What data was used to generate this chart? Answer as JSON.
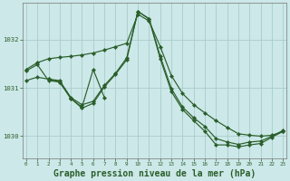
{
  "title": "Graphe pression niveau de la mer (hPa)",
  "hours": [
    0,
    1,
    2,
    3,
    4,
    5,
    6,
    7,
    8,
    9,
    10,
    11,
    12,
    13,
    14,
    15,
    16,
    17,
    18,
    19,
    20,
    21,
    22,
    23
  ],
  "line_smooth": {
    "x": [
      0,
      1,
      2,
      3,
      4,
      5,
      6,
      7,
      8,
      9,
      10,
      11,
      12,
      13,
      14,
      15,
      16,
      17,
      18,
      19,
      20,
      21,
      22,
      23
    ],
    "y": [
      1031.38,
      1031.52,
      1031.6,
      1031.63,
      1031.65,
      1031.68,
      1031.72,
      1031.78,
      1031.85,
      1031.92,
      1032.52,
      1032.38,
      1031.85,
      1031.25,
      1030.88,
      1030.65,
      1030.48,
      1030.32,
      1030.18,
      1030.05,
      1030.02,
      1030.0,
      1030.02,
      1030.1
    ]
  },
  "line_zigzag": {
    "x": [
      0,
      1,
      2,
      3,
      4,
      5,
      6,
      7,
      8,
      9,
      10,
      11,
      12,
      13,
      14,
      15,
      16,
      17,
      18,
      19,
      20,
      21,
      22,
      23
    ],
    "y": [
      1031.15,
      1031.22,
      1031.18,
      1031.15,
      1030.8,
      1030.65,
      1030.72,
      1031.05,
      1031.3,
      1031.62,
      1032.58,
      1032.43,
      1031.65,
      1030.98,
      1030.6,
      1030.38,
      1030.2,
      1029.95,
      1029.88,
      1029.83,
      1029.88,
      1029.9,
      1030.0,
      1030.12
    ]
  },
  "line_spike": {
    "x": [
      2,
      3,
      4,
      5,
      6,
      7
    ],
    "y": [
      1031.18,
      1031.12,
      1030.78,
      1030.6,
      1031.38,
      1030.8
    ]
  },
  "line_bottom": {
    "x": [
      0,
      1,
      2,
      3,
      4,
      5,
      6,
      7,
      8,
      9,
      10,
      11,
      12,
      13,
      14,
      15,
      16,
      17,
      18,
      19,
      20,
      21,
      22,
      23
    ],
    "y": [
      1031.35,
      1031.48,
      1031.15,
      1031.12,
      1030.78,
      1030.58,
      1030.68,
      1031.02,
      1031.28,
      1031.58,
      1032.58,
      1032.42,
      1031.6,
      1030.92,
      1030.55,
      1030.32,
      1030.1,
      1029.82,
      1029.82,
      1029.78,
      1029.82,
      1029.85,
      1029.98,
      1030.1
    ]
  },
  "ylim": [
    1029.55,
    1032.75
  ],
  "yticks": [
    1030,
    1031,
    1032
  ],
  "bg_color": "#cce8e8",
  "grid_color": "#aacccc",
  "line_color": "#2a5e2a",
  "axis_color": "#2a5e2a",
  "title_fontsize": 7.0
}
